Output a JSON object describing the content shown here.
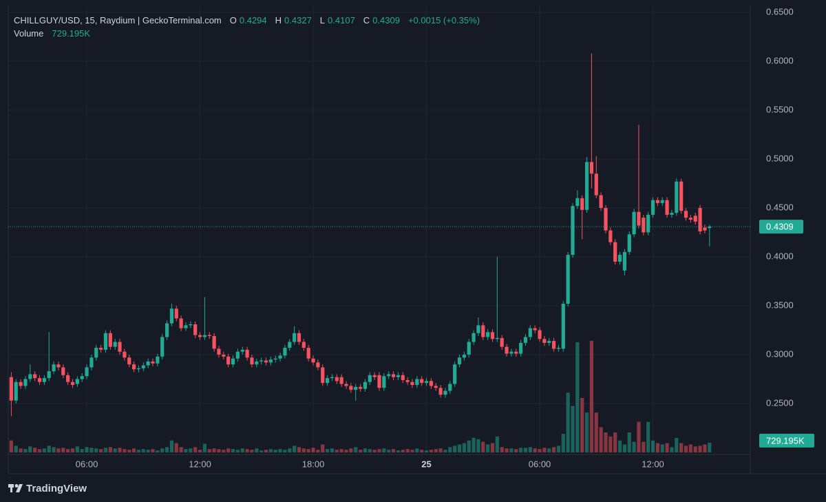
{
  "header": {
    "symbol": "CHILLGUY/USD, 15, Raydium | GeckoTerminal.com",
    "ohlc": [
      {
        "key": "O",
        "value": "0.4294"
      },
      {
        "key": "H",
        "value": "0.4327"
      },
      {
        "key": "L",
        "value": "0.4107"
      },
      {
        "key": "C",
        "value": "0.4309"
      }
    ],
    "change": "+0.0015 (+0.35%)",
    "volume_key": "Volume",
    "volume_value": "729.195K"
  },
  "footer": {
    "brand": "TradingView"
  },
  "chart_data": {
    "type": "candlestick",
    "up_color": "#22ab94",
    "down_color": "#f7525f",
    "grid": true,
    "xlim": [
      1.84,
      41.16
    ],
    "xticks": [
      {
        "value": 6,
        "label": "06:00"
      },
      {
        "value": 12,
        "label": "12:00"
      },
      {
        "value": 18,
        "label": "18:00"
      },
      {
        "value": 24,
        "label": "25"
      },
      {
        "value": 30,
        "label": "06:00"
      },
      {
        "value": 36,
        "label": "12:00"
      }
    ],
    "ylim": [
      0.2,
      0.657
    ],
    "yticks": [
      {
        "value": 0.25,
        "label": "0.2500"
      },
      {
        "value": 0.3,
        "label": "0.3000"
      },
      {
        "value": 0.35,
        "label": "0.3500"
      },
      {
        "value": 0.4,
        "label": "0.4000"
      },
      {
        "value": 0.45,
        "label": "0.4500"
      },
      {
        "value": 0.5,
        "label": "0.5000"
      },
      {
        "value": 0.55,
        "label": "0.5500"
      },
      {
        "value": 0.6,
        "label": "0.6000"
      },
      {
        "value": 0.65,
        "label": "0.6500"
      }
    ],
    "last_price": {
      "value": 0.4309,
      "label": "0.4309"
    },
    "last_volume": {
      "value": 729195,
      "label": "729.195K"
    },
    "x": [
      2,
      2.25,
      2.5,
      2.75,
      3,
      3.25,
      3.5,
      3.75,
      4,
      4.25,
      4.5,
      4.75,
      5,
      5.25,
      5.5,
      5.75,
      6,
      6.25,
      6.5,
      6.75,
      7,
      7.25,
      7.5,
      7.75,
      8,
      8.25,
      8.5,
      8.75,
      9,
      9.25,
      9.5,
      9.75,
      10,
      10.25,
      10.5,
      10.75,
      11,
      11.25,
      11.5,
      11.75,
      12,
      12.25,
      12.5,
      12.75,
      13,
      13.25,
      13.5,
      13.75,
      14,
      14.25,
      14.5,
      14.75,
      15,
      15.25,
      15.5,
      15.75,
      16,
      16.25,
      16.5,
      16.75,
      17,
      17.25,
      17.5,
      17.75,
      18,
      18.25,
      18.5,
      18.75,
      19,
      19.25,
      19.5,
      19.75,
      20,
      20.25,
      20.5,
      20.75,
      21,
      21.25,
      21.5,
      21.75,
      22,
      22.25,
      22.5,
      22.75,
      23,
      23.25,
      23.5,
      23.75,
      24,
      24.25,
      24.5,
      24.75,
      25,
      25.25,
      25.5,
      25.75,
      26,
      26.25,
      26.5,
      26.75,
      27,
      27.25,
      27.5,
      27.75,
      28,
      28.25,
      28.5,
      28.75,
      29,
      29.25,
      29.5,
      29.75,
      30,
      30.25,
      30.5,
      30.75,
      31,
      31.25,
      31.5,
      31.75,
      32,
      32.25,
      32.5,
      32.75,
      33,
      33.25,
      33.5,
      33.75,
      34,
      34.25,
      34.5,
      34.75,
      35,
      35.25,
      35.5,
      35.75,
      36,
      36.25,
      36.5,
      36.75,
      37,
      37.25,
      37.5,
      37.75,
      38,
      38.25,
      38.5,
      38.75,
      39
    ],
    "open": [
      0.277,
      0.253,
      0.272,
      0.268,
      0.275,
      0.28,
      0.276,
      0.272,
      0.276,
      0.283,
      0.29,
      0.287,
      0.279,
      0.272,
      0.27,
      0.275,
      0.278,
      0.287,
      0.297,
      0.307,
      0.305,
      0.322,
      0.308,
      0.313,
      0.303,
      0.297,
      0.29,
      0.285,
      0.286,
      0.289,
      0.293,
      0.291,
      0.298,
      0.318,
      0.332,
      0.347,
      0.337,
      0.327,
      0.33,
      0.331,
      0.32,
      0.318,
      0.32,
      0.319,
      0.306,
      0.3,
      0.298,
      0.29,
      0.296,
      0.303,
      0.305,
      0.297,
      0.29,
      0.293,
      0.294,
      0.292,
      0.295,
      0.296,
      0.299,
      0.307,
      0.313,
      0.322,
      0.313,
      0.307,
      0.296,
      0.292,
      0.287,
      0.271,
      0.276,
      0.277,
      0.277,
      0.27,
      0.268,
      0.264,
      0.267,
      0.265,
      0.272,
      0.279,
      0.279,
      0.266,
      0.278,
      0.28,
      0.277,
      0.279,
      0.274,
      0.272,
      0.269,
      0.275,
      0.271,
      0.273,
      0.268,
      0.266,
      0.259,
      0.263,
      0.27,
      0.29,
      0.297,
      0.3,
      0.313,
      0.322,
      0.33,
      0.318,
      0.323,
      0.316,
      0.317,
      0.308,
      0.301,
      0.303,
      0.301,
      0.312,
      0.318,
      0.327,
      0.325,
      0.316,
      0.312,
      0.314,
      0.306,
      0.306,
      0.352,
      0.402,
      0.452,
      0.46,
      0.448,
      0.497,
      0.485,
      0.463,
      0.45,
      0.427,
      0.415,
      0.395,
      0.386,
      0.405,
      0.423,
      0.446,
      0.44,
      0.425,
      0.443,
      0.458,
      0.455,
      0.458,
      0.443,
      0.445,
      0.477,
      0.447,
      0.44,
      0.442,
      0.45,
      0.43,
      0.4294
    ],
    "high": [
      0.282,
      0.275,
      0.275,
      0.278,
      0.29,
      0.283,
      0.279,
      0.279,
      0.323,
      0.293,
      0.293,
      0.29,
      0.282,
      0.275,
      0.278,
      0.281,
      0.29,
      0.3,
      0.31,
      0.31,
      0.325,
      0.325,
      0.316,
      0.316,
      0.306,
      0.3,
      0.293,
      0.289,
      0.292,
      0.296,
      0.296,
      0.301,
      0.321,
      0.335,
      0.352,
      0.35,
      0.34,
      0.333,
      0.334,
      0.334,
      0.323,
      0.359,
      0.323,
      0.322,
      0.309,
      0.303,
      0.301,
      0.299,
      0.306,
      0.308,
      0.308,
      0.3,
      0.296,
      0.297,
      0.297,
      0.298,
      0.299,
      0.302,
      0.31,
      0.316,
      0.329,
      0.325,
      0.316,
      0.31,
      0.299,
      0.295,
      0.29,
      0.279,
      0.28,
      0.28,
      0.28,
      0.273,
      0.271,
      0.27,
      0.27,
      0.275,
      0.282,
      0.282,
      0.282,
      0.281,
      0.283,
      0.283,
      0.282,
      0.282,
      0.277,
      0.275,
      0.278,
      0.278,
      0.276,
      0.276,
      0.271,
      0.269,
      0.266,
      0.273,
      0.293,
      0.3,
      0.303,
      0.316,
      0.325,
      0.338,
      0.333,
      0.326,
      0.326,
      0.4,
      0.32,
      0.311,
      0.306,
      0.306,
      0.315,
      0.321,
      0.33,
      0.33,
      0.328,
      0.319,
      0.317,
      0.317,
      0.31,
      0.355,
      0.405,
      0.455,
      0.468,
      0.463,
      0.502,
      0.608,
      0.503,
      0.466,
      0.453,
      0.43,
      0.418,
      0.405,
      0.408,
      0.426,
      0.449,
      0.535,
      0.443,
      0.446,
      0.461,
      0.461,
      0.461,
      0.461,
      0.448,
      0.48,
      0.48,
      0.45,
      0.443,
      0.445,
      0.453,
      0.433,
      0.4327
    ],
    "low": [
      0.237,
      0.25,
      0.265,
      0.265,
      0.272,
      0.273,
      0.269,
      0.269,
      0.273,
      0.28,
      0.284,
      0.276,
      0.269,
      0.266,
      0.267,
      0.272,
      0.275,
      0.284,
      0.294,
      0.302,
      0.302,
      0.305,
      0.305,
      0.3,
      0.294,
      0.287,
      0.282,
      0.282,
      0.283,
      0.286,
      0.288,
      0.288,
      0.295,
      0.315,
      0.329,
      0.334,
      0.324,
      0.324,
      0.327,
      0.317,
      0.315,
      0.315,
      0.316,
      0.303,
      0.297,
      0.295,
      0.287,
      0.287,
      0.293,
      0.3,
      0.294,
      0.287,
      0.287,
      0.29,
      0.289,
      0.289,
      0.292,
      0.293,
      0.296,
      0.304,
      0.31,
      0.31,
      0.304,
      0.293,
      0.289,
      0.284,
      0.268,
      0.268,
      0.273,
      0.27,
      0.267,
      0.265,
      0.261,
      0.253,
      0.262,
      0.262,
      0.269,
      0.274,
      0.263,
      0.263,
      0.275,
      0.274,
      0.274,
      0.271,
      0.269,
      0.266,
      0.266,
      0.268,
      0.268,
      0.265,
      0.263,
      0.256,
      0.256,
      0.26,
      0.267,
      0.287,
      0.294,
      0.297,
      0.31,
      0.319,
      0.315,
      0.315,
      0.313,
      0.313,
      0.305,
      0.298,
      0.298,
      0.298,
      0.298,
      0.309,
      0.315,
      0.322,
      0.313,
      0.309,
      0.309,
      0.303,
      0.303,
      0.303,
      0.349,
      0.399,
      0.449,
      0.418,
      0.445,
      0.47,
      0.46,
      0.447,
      0.424,
      0.412,
      0.392,
      0.392,
      0.381,
      0.402,
      0.42,
      0.429,
      0.422,
      0.422,
      0.44,
      0.452,
      0.452,
      0.44,
      0.44,
      0.442,
      0.444,
      0.437,
      0.435,
      0.433,
      0.423,
      0.424,
      0.4107
    ],
    "close": [
      0.253,
      0.272,
      0.268,
      0.275,
      0.28,
      0.276,
      0.272,
      0.276,
      0.283,
      0.29,
      0.287,
      0.279,
      0.272,
      0.269,
      0.275,
      0.278,
      0.287,
      0.297,
      0.307,
      0.305,
      0.322,
      0.308,
      0.313,
      0.303,
      0.297,
      0.29,
      0.285,
      0.286,
      0.289,
      0.293,
      0.291,
      0.298,
      0.318,
      0.332,
      0.347,
      0.337,
      0.327,
      0.33,
      0.331,
      0.32,
      0.318,
      0.32,
      0.319,
      0.306,
      0.3,
      0.298,
      0.29,
      0.296,
      0.303,
      0.305,
      0.297,
      0.29,
      0.293,
      0.294,
      0.292,
      0.295,
      0.296,
      0.299,
      0.307,
      0.313,
      0.322,
      0.313,
      0.307,
      0.296,
      0.292,
      0.287,
      0.271,
      0.276,
      0.277,
      0.273,
      0.27,
      0.268,
      0.264,
      0.267,
      0.265,
      0.272,
      0.279,
      0.277,
      0.266,
      0.278,
      0.28,
      0.277,
      0.279,
      0.274,
      0.272,
      0.269,
      0.275,
      0.271,
      0.273,
      0.268,
      0.266,
      0.259,
      0.263,
      0.27,
      0.29,
      0.297,
      0.3,
      0.313,
      0.322,
      0.33,
      0.318,
      0.323,
      0.316,
      0.317,
      0.308,
      0.301,
      0.303,
      0.301,
      0.312,
      0.318,
      0.327,
      0.325,
      0.316,
      0.312,
      0.314,
      0.306,
      0.307,
      0.352,
      0.402,
      0.452,
      0.46,
      0.448,
      0.497,
      0.485,
      0.463,
      0.45,
      0.427,
      0.415,
      0.395,
      0.402,
      0.405,
      0.423,
      0.446,
      0.432,
      0.425,
      0.443,
      0.458,
      0.455,
      0.458,
      0.443,
      0.445,
      0.477,
      0.447,
      0.44,
      0.438,
      0.436,
      0.426,
      0.427,
      0.4309
    ],
    "volume": [
      900000,
      500000,
      300000,
      250000,
      450000,
      350000,
      250000,
      300000,
      500000,
      400000,
      300000,
      350000,
      250000,
      300000,
      450000,
      250000,
      400000,
      350000,
      300000,
      250000,
      350000,
      400000,
      300000,
      350000,
      250000,
      200000,
      300000,
      200000,
      250000,
      200000,
      250000,
      150000,
      300000,
      400000,
      900000,
      700000,
      400000,
      250000,
      300000,
      400000,
      200000,
      650000,
      250000,
      300000,
      250000,
      200000,
      300000,
      250000,
      200000,
      300000,
      250000,
      200000,
      300000,
      150000,
      200000,
      250000,
      200000,
      250000,
      200000,
      300000,
      500000,
      400000,
      300000,
      250000,
      350000,
      200000,
      600000,
      250000,
      300000,
      200000,
      250000,
      200000,
      300000,
      400000,
      200000,
      300000,
      250000,
      200000,
      250000,
      300000,
      200000,
      250000,
      150000,
      200000,
      250000,
      200000,
      300000,
      200000,
      150000,
      200000,
      250000,
      300000,
      200000,
      400000,
      500000,
      600000,
      700000,
      900000,
      1100000,
      1000000,
      800000,
      600000,
      700000,
      1200000,
      400000,
      300000,
      300000,
      250000,
      350000,
      350000,
      400000,
      300000,
      250000,
      350000,
      300000,
      400000,
      500000,
      1400000,
      4500000,
      3500000,
      8300000,
      4100000,
      3000000,
      8400000,
      3000000,
      1900000,
      1500000,
      1200000,
      1500000,
      900000,
      600000,
      1500000,
      800000,
      2300000,
      800000,
      2300000,
      900000,
      700000,
      600000,
      700000,
      400000,
      1100000,
      700000,
      500000,
      600000,
      450000,
      500000,
      600000,
      729195
    ]
  }
}
